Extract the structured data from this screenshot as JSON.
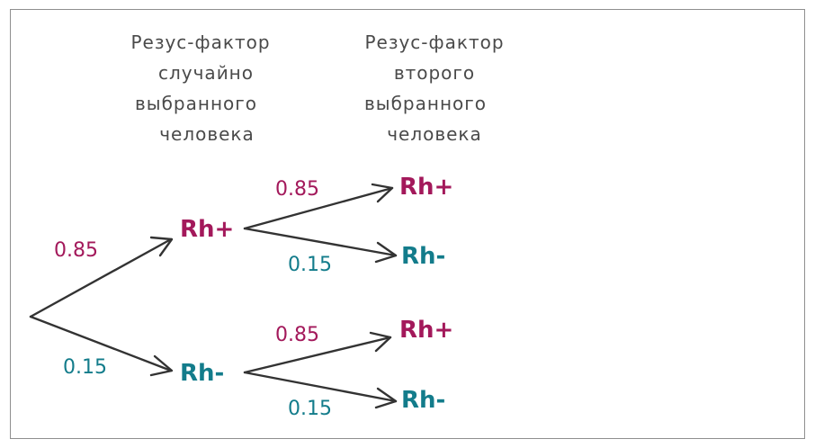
{
  "headers": {
    "first": [
      "Резус-фактор",
      "случайно",
      "выбранного",
      "человека"
    ],
    "second": [
      "Резус-фактор",
      "второго",
      "выбранного",
      "человека"
    ]
  },
  "nodes": {
    "level1_top": "Rh+",
    "level1_bottom": "Rh-",
    "level2_top_pos": "Rh+",
    "level2_top_neg": "Rh-",
    "level2_bottom_pos": "Rh+",
    "level2_bottom_neg": "Rh-"
  },
  "probabilities": {
    "root_to_pos": "0.85",
    "root_to_neg": "0.15",
    "pos_to_pos": "0.85",
    "pos_to_neg": "0.15",
    "neg_to_pos": "0.85",
    "neg_to_neg": "0.15"
  },
  "colors": {
    "positive": "#a3195b",
    "negative": "#137c8b",
    "text": "#4a4a4a",
    "arrow": "#333333"
  }
}
